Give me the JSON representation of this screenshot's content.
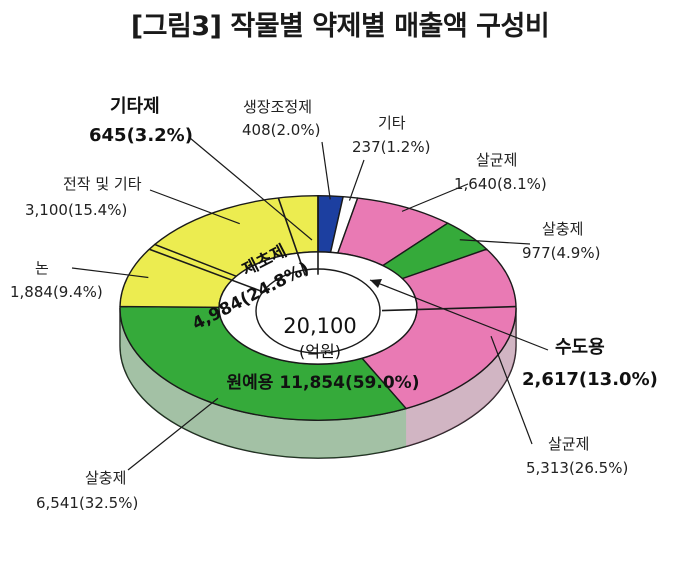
{
  "title": "[그림3] 작물별 약제별 매출액 구성비",
  "chart_data": {
    "type": "pie",
    "total": {
      "value": "20,100",
      "unit": "(억원)"
    },
    "inner_ring": [
      {
        "name": "제초제",
        "value": 4984,
        "label": "제초제",
        "value_label": "4,984(24.8%)",
        "color": "#ffffff"
      },
      {
        "name": "원예용",
        "value": 11854,
        "label": "원예용 11,854(59.0%)",
        "color": "#ffffff"
      },
      {
        "name": "수도용",
        "value": 2617,
        "label": "수도용",
        "value_label": "2,617(13.0%)",
        "color": "#ffffff"
      },
      {
        "name": "기타제",
        "value": 645,
        "label": "기타제",
        "value_label": "645(3.2%)",
        "color": "#ffffff"
      }
    ],
    "outer_ring": [
      {
        "name": "생장조정제",
        "value": 408,
        "value_label": "408(2.0%)",
        "color": "#1c3fa0"
      },
      {
        "name": "기타",
        "value": 237,
        "value_label": "237(1.2%)",
        "color": "#ffffff"
      },
      {
        "name": "살균제",
        "value": 1640,
        "value_label": "1,640(8.1%)",
        "color": "#e97ab4"
      },
      {
        "name": "살충제",
        "value": 977,
        "value_label": "977(4.9%)",
        "color": "#35aa3a"
      },
      {
        "name": "살균제",
        "value": 5313,
        "value_label": "5,313(26.5%)",
        "color": "#e97ab4"
      },
      {
        "name": "살충제",
        "value": 6541,
        "value_label": "6,541(32.5%)",
        "color": "#35aa3a"
      },
      {
        "name": "논",
        "value": 1884,
        "value_label": "1,884(9.4%)",
        "color": "#ecec50"
      },
      {
        "name": "전작 및 기타",
        "value": 3100,
        "value_label": "3,100(15.4%)",
        "color": "#ecec50"
      }
    ]
  }
}
